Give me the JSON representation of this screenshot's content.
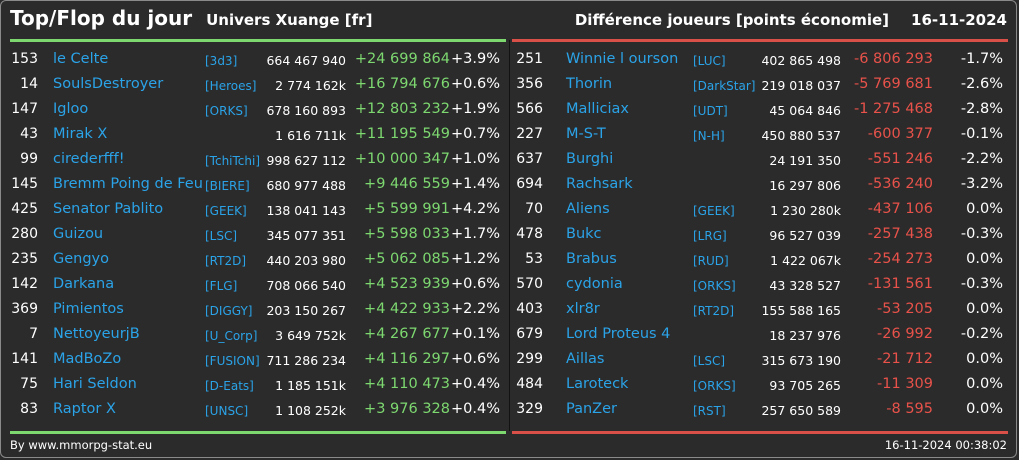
{
  "header": {
    "title": "Top/Flop du jour",
    "subtitle": "Univers Xuange [fr]",
    "metric": "Différence joueurs [points économie]",
    "date": "16-11-2024"
  },
  "colors": {
    "top": "#7dd870",
    "flop": "#e8524a",
    "name": "#2ba3e8",
    "background": "#2b2b2b"
  },
  "top": [
    {
      "rank": "153",
      "name": "le Celte",
      "guild": "[3d3]",
      "score": "664 467 940",
      "diff": "+24 699 864",
      "pct": "+3.9%"
    },
    {
      "rank": "14",
      "name": "SoulsDestroyer",
      "guild": "[Heroes]",
      "score": "2 774 162k",
      "diff": "+16 794 676",
      "pct": "+0.6%"
    },
    {
      "rank": "147",
      "name": "Igloo",
      "guild": "[ORKS]",
      "score": "678 160 893",
      "diff": "+12 803 232",
      "pct": "+1.9%"
    },
    {
      "rank": "43",
      "name": "Mirak X",
      "guild": "",
      "score": "1 616 711k",
      "diff": "+11 195 549",
      "pct": "+0.7%"
    },
    {
      "rank": "99",
      "name": "cirederfff!",
      "guild": "[TchiTchi]",
      "score": "998 627 112",
      "diff": "+10 000 347",
      "pct": "+1.0%"
    },
    {
      "rank": "145",
      "name": "Bremm Poing de Feu",
      "guild": "[BIERE]",
      "score": "680 977 488",
      "diff": "+9 446 559",
      "pct": "+1.4%"
    },
    {
      "rank": "425",
      "name": "Senator Pablito",
      "guild": "[GEEK]",
      "score": "138 041 143",
      "diff": "+5 599 991",
      "pct": "+4.2%"
    },
    {
      "rank": "280",
      "name": "Guizou",
      "guild": "[LSC]",
      "score": "345 077 351",
      "diff": "+5 598 033",
      "pct": "+1.7%"
    },
    {
      "rank": "235",
      "name": "Gengyo",
      "guild": "[RT2D]",
      "score": "440 203 980",
      "diff": "+5 062 085",
      "pct": "+1.2%"
    },
    {
      "rank": "142",
      "name": "Darkana",
      "guild": "[FLG]",
      "score": "708 066 540",
      "diff": "+4 523 939",
      "pct": "+0.6%"
    },
    {
      "rank": "369",
      "name": "Pimientos",
      "guild": "[DIGGY]",
      "score": "203 150 267",
      "diff": "+4 422 933",
      "pct": "+2.2%"
    },
    {
      "rank": "7",
      "name": "NettoyeurjB",
      "guild": "[U_Corp]",
      "score": "3 649 752k",
      "diff": "+4 267 677",
      "pct": "+0.1%"
    },
    {
      "rank": "141",
      "name": "MadBoZo",
      "guild": "[FUSION]",
      "score": "711 286 234",
      "diff": "+4 116 297",
      "pct": "+0.6%"
    },
    {
      "rank": "75",
      "name": "Hari Seldon",
      "guild": "[D-Eats]",
      "score": "1 185 151k",
      "diff": "+4 110 473",
      "pct": "+0.4%"
    },
    {
      "rank": "83",
      "name": "Raptor X",
      "guild": "[UNSC]",
      "score": "1 108 252k",
      "diff": "+3 976 328",
      "pct": "+0.4%"
    }
  ],
  "flop": [
    {
      "rank": "251",
      "name": "Winnie l ourson",
      "guild": "[LUC]",
      "score": "402 865 498",
      "diff": "-6 806 293",
      "pct": "-1.7%"
    },
    {
      "rank": "356",
      "name": "Thorin",
      "guild": "[DarkStar]",
      "score": "219 018 037",
      "diff": "-5 769 681",
      "pct": "-2.6%"
    },
    {
      "rank": "566",
      "name": "Malliciax",
      "guild": "[UDT]",
      "score": "45 064 846",
      "diff": "-1 275 468",
      "pct": "-2.8%"
    },
    {
      "rank": "227",
      "name": "M-S-T",
      "guild": "[N-H]",
      "score": "450 880 537",
      "diff": "-600 377",
      "pct": "-0.1%"
    },
    {
      "rank": "637",
      "name": "Burghi",
      "guild": "",
      "score": "24 191 350",
      "diff": "-551 246",
      "pct": "-2.2%"
    },
    {
      "rank": "694",
      "name": "Rachsark",
      "guild": "",
      "score": "16 297 806",
      "diff": "-536 240",
      "pct": "-3.2%"
    },
    {
      "rank": "70",
      "name": "Aliens",
      "guild": "[GEEK]",
      "score": "1 230 280k",
      "diff": "-437 106",
      "pct": "0.0%"
    },
    {
      "rank": "478",
      "name": "Bukc",
      "guild": "[LRG]",
      "score": "96 527 039",
      "diff": "-257 438",
      "pct": "-0.3%"
    },
    {
      "rank": "53",
      "name": "Brabus",
      "guild": "[RUD]",
      "score": "1 422 067k",
      "diff": "-254 273",
      "pct": "0.0%"
    },
    {
      "rank": "570",
      "name": "cydonia",
      "guild": "[ORKS]",
      "score": "43 328 527",
      "diff": "-131 561",
      "pct": "-0.3%"
    },
    {
      "rank": "403",
      "name": "xlr8r",
      "guild": "[RT2D]",
      "score": "155 588 165",
      "diff": "-53 205",
      "pct": "0.0%"
    },
    {
      "rank": "679",
      "name": "Lord Proteus 4",
      "guild": "",
      "score": "18 237 976",
      "diff": "-26 992",
      "pct": "-0.2%"
    },
    {
      "rank": "299",
      "name": "Aillas",
      "guild": "[LSC]",
      "score": "315 673 190",
      "diff": "-21 712",
      "pct": "0.0%"
    },
    {
      "rank": "484",
      "name": "Laroteck",
      "guild": "[ORKS]",
      "score": "93 705 265",
      "diff": "-11 309",
      "pct": "0.0%"
    },
    {
      "rank": "329",
      "name": "PanZer",
      "guild": "[RST]",
      "score": "257 650 589",
      "diff": "-8 595",
      "pct": "0.0%"
    }
  ],
  "footer": {
    "credit": "By www.mmorpg-stat.eu",
    "timestamp": "16-11-2024 00:38:02"
  }
}
